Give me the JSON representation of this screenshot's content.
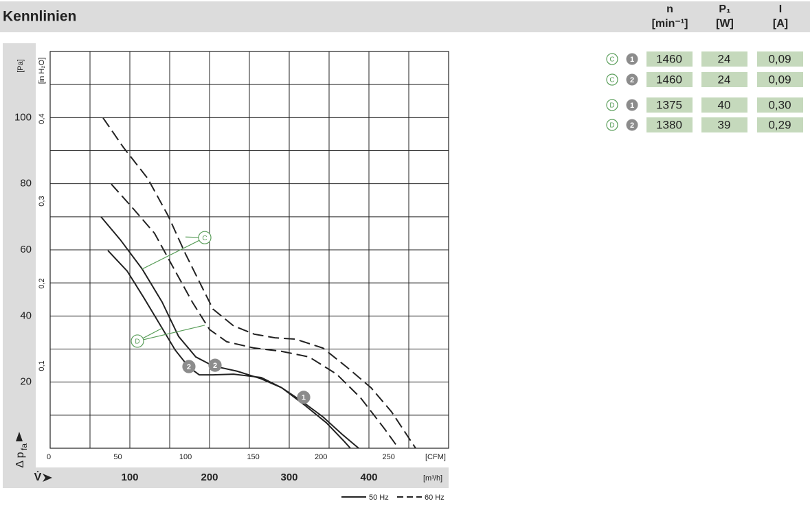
{
  "header": {
    "title": "Kennlinien"
  },
  "table": {
    "columns": [
      {
        "symbol": "n",
        "unit": "[min⁻¹]"
      },
      {
        "symbol": "P₁",
        "unit": "[W]"
      },
      {
        "symbol": "I",
        "unit": "[A]"
      }
    ],
    "rows": [
      {
        "curve": "C",
        "number": "1",
        "cells": [
          "1460",
          "24",
          "0,09"
        ]
      },
      {
        "curve": "C",
        "number": "2",
        "cells": [
          "1460",
          "24",
          "0,09"
        ]
      },
      {
        "curve": "D",
        "number": "1",
        "cells": [
          "1375",
          "40",
          "0,30"
        ]
      },
      {
        "curve": "D",
        "number": "2",
        "cells": [
          "1380",
          "39",
          "0,29"
        ]
      }
    ]
  },
  "chart_data": {
    "type": "line",
    "xlabel": "V̇",
    "xunit": "[m³/h]",
    "xlim": [
      0,
      500
    ],
    "xticks": [
      100,
      200,
      300,
      400
    ],
    "xminorticks": [
      50,
      150,
      250,
      350,
      450
    ],
    "x2unit": "[CFM]",
    "x2lim": [
      0,
      294.29
    ],
    "x2ticks": [
      0,
      50,
      100,
      150,
      200,
      250
    ],
    "ylabel": "Δ p",
    "ylabel_sub": "fa",
    "yunit": "[Pa]",
    "ylim": [
      0,
      120
    ],
    "yticks": [
      20,
      40,
      60,
      80,
      100
    ],
    "yminorticks": [
      10,
      30,
      50,
      70,
      90,
      110
    ],
    "y2unit": "[in H₂O]",
    "y2lim": [
      0,
      0.48176
    ],
    "y2ticks": [
      {
        "value": 0.1,
        "label": "0,1"
      },
      {
        "value": 0.2,
        "label": "0,2"
      },
      {
        "value": 0.3,
        "label": "0,3"
      },
      {
        "value": 0.4,
        "label": "0,4"
      }
    ],
    "grid": true,
    "legend": [
      {
        "label": "50 Hz",
        "dashed": false
      },
      {
        "label": "60 Hz",
        "dashed": true
      }
    ],
    "series": [
      {
        "color": "#222222",
        "dashed": false,
        "x": [
          63.8,
          87.9,
          115.5,
          140.5,
          161.2,
          182.8,
          204.3,
          234.5,
          264.7,
          290.5,
          316.4,
          342.2,
          366.4,
          387.1
        ],
        "values": [
          70.0,
          63.1,
          54.2,
          44.2,
          33.8,
          27.6,
          24.9,
          23.3,
          21.0,
          18.3,
          14.1,
          9.5,
          4.2,
          0
        ]
      },
      {
        "color": "#222222",
        "dashed": false,
        "x": [
          72.4,
          96.6,
          118.1,
          140.5,
          156.9,
          174.1,
          187.1,
          204.3,
          230.2,
          264.7,
          290.5,
          319.0,
          346.6,
          368.1,
          376.7
        ],
        "values": [
          59.8,
          53.6,
          45.3,
          36.3,
          29.7,
          24.5,
          22.2,
          22.2,
          22.4,
          21.4,
          18.3,
          13.1,
          7.7,
          2.3,
          0
        ]
      },
      {
        "color": "#222222",
        "dashed": true,
        "x": [
          66.4,
          92.2,
          122.4,
          148.3,
          169.8,
          187.1,
          204.3,
          230.2,
          256.0,
          281.9,
          307.8,
          342.2,
          372.4,
          402.6,
          428.4,
          458.6
        ],
        "values": [
          99.9,
          90.9,
          81.6,
          70.2,
          58.8,
          50.4,
          42.1,
          37.0,
          34.5,
          33.4,
          33.0,
          30.3,
          24.5,
          18.3,
          11.0,
          0
        ]
      },
      {
        "color": "#222222",
        "dashed": true,
        "x": [
          76.7,
          105.2,
          131.0,
          156.9,
          178.4,
          200.0,
          221.6,
          256.0,
          290.5,
          325.0,
          359.5,
          389.7,
          419.8,
          437.1
        ],
        "values": [
          79.9,
          72.2,
          65.0,
          53.6,
          44.2,
          35.9,
          32.2,
          30.3,
          29.3,
          27.6,
          22.4,
          15.2,
          5.8,
          0
        ]
      }
    ],
    "annotations": [
      {
        "text": "2",
        "x": 174.1,
        "y": 24.7,
        "filled": true,
        "color": "#8c8c8c"
      },
      {
        "text": "2",
        "x": 206.9,
        "y": 25.1,
        "filled": true,
        "color": "#8c8c8c"
      },
      {
        "text": "1",
        "x": 318.1,
        "y": 15.4,
        "filled": true,
        "color": "#8c8c8c"
      },
      {
        "text": "C",
        "x": 194.0,
        "y": 63.7,
        "filled": false,
        "color": "#5a9e5a",
        "targets": [
          [
            115.5,
            54.2
          ],
          [
            169.8,
            63.9
          ]
        ]
      },
      {
        "text": "D",
        "x": 109.5,
        "y": 32.4,
        "filled": false,
        "color": "#5a9e5a",
        "targets": [
          [
            140.5,
            36.3
          ],
          [
            194.0,
            37.2
          ]
        ]
      }
    ]
  }
}
